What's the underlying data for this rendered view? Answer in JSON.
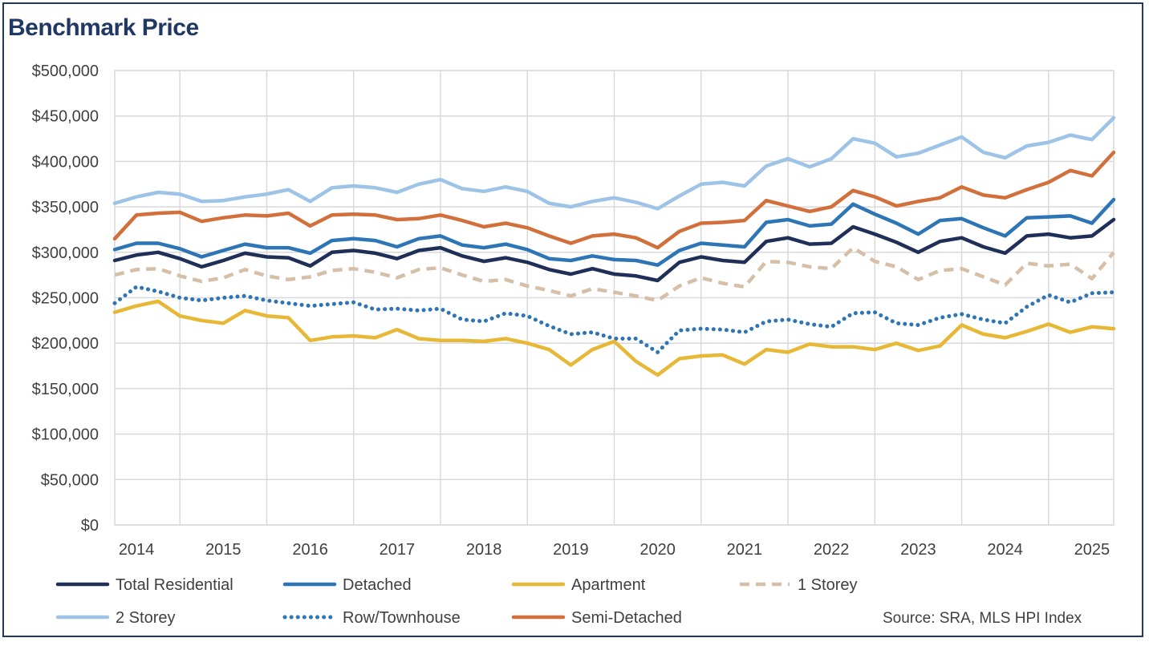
{
  "title": "Benchmark Price",
  "source": "Source: SRA, MLS HPI Index",
  "chart_data": {
    "type": "line",
    "title": "Benchmark Price",
    "xlabel": "",
    "ylabel": "",
    "ylim": [
      0,
      500000
    ],
    "yticks": [
      0,
      50000,
      100000,
      150000,
      200000,
      250000,
      300000,
      350000,
      400000,
      450000,
      500000
    ],
    "ytick_labels": [
      "$0",
      "$50,000",
      "$100,000",
      "$150,000",
      "$200,000",
      "$250,000",
      "$300,000",
      "$350,000",
      "$400,000",
      "$450,000",
      "$500,000"
    ],
    "categories": [
      "2014",
      "2015",
      "2016",
      "2017",
      "2018",
      "2019",
      "2020",
      "2021",
      "2022",
      "2023",
      "2024",
      "2025"
    ],
    "x_start": 2013.75,
    "x_end": 2025.25,
    "x": [
      2013.75,
      2014.0,
      2014.25,
      2014.5,
      2014.75,
      2015.0,
      2015.25,
      2015.5,
      2015.75,
      2016.0,
      2016.25,
      2016.5,
      2016.75,
      2017.0,
      2017.25,
      2017.5,
      2017.75,
      2018.0,
      2018.25,
      2018.5,
      2018.75,
      2019.0,
      2019.25,
      2019.5,
      2019.75,
      2020.0,
      2020.25,
      2020.5,
      2020.75,
      2021.0,
      2021.25,
      2021.5,
      2021.75,
      2022.0,
      2022.25,
      2022.5,
      2022.75,
      2023.0,
      2023.25,
      2023.5,
      2023.75,
      2024.0,
      2024.25,
      2024.5,
      2024.75,
      2025.0,
      2025.25
    ],
    "series": [
      {
        "name": "Total Residential",
        "color": "#1f2f57",
        "style": "solid",
        "values": [
          291000,
          297000,
          300000,
          293000,
          284000,
          291000,
          299000,
          295000,
          294000,
          285000,
          300000,
          302000,
          299000,
          293000,
          302000,
          305000,
          296000,
          290000,
          294000,
          289000,
          281000,
          276000,
          282000,
          276000,
          274000,
          269000,
          289000,
          295000,
          291000,
          289000,
          312000,
          316000,
          309000,
          310000,
          328000,
          320000,
          311000,
          300000,
          312000,
          316000,
          306000,
          299000,
          318000,
          320000,
          316000,
          318000,
          336000
        ]
      },
      {
        "name": "Detached",
        "color": "#2e75b6",
        "style": "solid",
        "values": [
          303000,
          310000,
          310000,
          304000,
          295000,
          302000,
          309000,
          305000,
          305000,
          299000,
          313000,
          315000,
          313000,
          306000,
          315000,
          318000,
          308000,
          305000,
          309000,
          303000,
          293000,
          291000,
          296000,
          292000,
          291000,
          286000,
          302000,
          310000,
          308000,
          306000,
          333000,
          336000,
          329000,
          331000,
          353000,
          342000,
          332000,
          320000,
          335000,
          337000,
          327000,
          318000,
          338000,
          339000,
          340000,
          332000,
          358000
        ]
      },
      {
        "name": "Apartment",
        "color": "#e6b835",
        "style": "solid",
        "values": [
          234000,
          241000,
          246000,
          230000,
          225000,
          222000,
          236000,
          230000,
          228000,
          203000,
          207000,
          208000,
          206000,
          215000,
          205000,
          203000,
          203000,
          202000,
          205000,
          200000,
          193000,
          176000,
          193000,
          202000,
          180000,
          165000,
          183000,
          186000,
          187000,
          177000,
          193000,
          190000,
          199000,
          196000,
          196000,
          193000,
          200000,
          192000,
          197000,
          220000,
          210000,
          206000,
          213000,
          221000,
          212000,
          218000,
          216000
        ]
      },
      {
        "name": "1 Storey",
        "color": "#d6bfa8",
        "style": "dash",
        "values": [
          275000,
          281000,
          282000,
          274000,
          268000,
          272000,
          281000,
          274000,
          270000,
          273000,
          280000,
          282000,
          278000,
          272000,
          281000,
          283000,
          275000,
          268000,
          270000,
          263000,
          258000,
          252000,
          260000,
          256000,
          252000,
          247000,
          263000,
          272000,
          266000,
          262000,
          290000,
          289000,
          284000,
          282000,
          305000,
          290000,
          284000,
          270000,
          280000,
          282000,
          273000,
          264000,
          288000,
          285000,
          287000,
          271000,
          300000
        ]
      },
      {
        "name": "2 Storey",
        "color": "#9dc3e6",
        "style": "solid",
        "values": [
          354000,
          361000,
          366000,
          364000,
          356000,
          357000,
          361000,
          364000,
          369000,
          356000,
          371000,
          373000,
          371000,
          366000,
          375000,
          380000,
          370000,
          367000,
          372000,
          367000,
          354000,
          350000,
          356000,
          360000,
          355000,
          348000,
          362000,
          375000,
          377000,
          373000,
          395000,
          403000,
          394000,
          403000,
          425000,
          420000,
          405000,
          409000,
          418000,
          427000,
          410000,
          404000,
          417000,
          421000,
          429000,
          424000,
          448000
        ]
      },
      {
        "name": "Row/Townhouse",
        "color": "#2e75b6",
        "style": "dot",
        "values": [
          244000,
          262000,
          257000,
          250000,
          247000,
          250000,
          252000,
          247000,
          244000,
          241000,
          243000,
          245000,
          237000,
          238000,
          236000,
          238000,
          226000,
          224000,
          233000,
          230000,
          219000,
          210000,
          212000,
          205000,
          205000,
          190000,
          214000,
          216000,
          215000,
          212000,
          224000,
          226000,
          221000,
          218000,
          233000,
          234000,
          222000,
          220000,
          228000,
          232000,
          226000,
          222000,
          240000,
          253000,
          245000,
          255000,
          256000
        ]
      },
      {
        "name": "Semi-Detached",
        "color": "#d2703c",
        "style": "solid",
        "values": [
          315000,
          341000,
          343000,
          344000,
          334000,
          338000,
          341000,
          340000,
          343000,
          329000,
          341000,
          342000,
          341000,
          336000,
          337000,
          341000,
          335000,
          328000,
          332000,
          327000,
          318000,
          310000,
          318000,
          320000,
          316000,
          305000,
          323000,
          332000,
          333000,
          335000,
          357000,
          351000,
          345000,
          350000,
          368000,
          361000,
          351000,
          356000,
          360000,
          372000,
          363000,
          360000,
          369000,
          377000,
          390000,
          384000,
          410000
        ]
      }
    ],
    "legend_position": "bottom",
    "grid": true
  }
}
